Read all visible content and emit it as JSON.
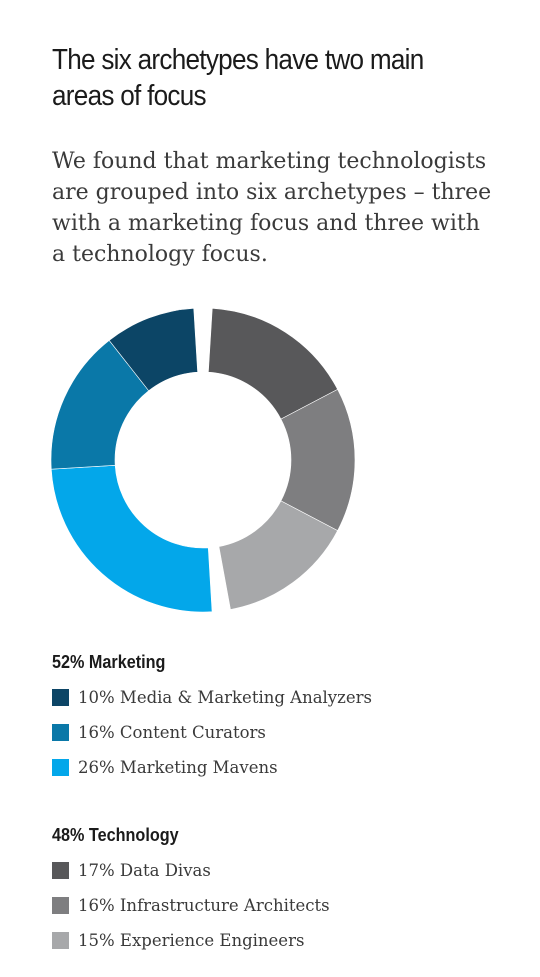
{
  "header": {
    "title": "The six archetypes have two main areas of focus",
    "subtitle": "We found that marketing technologists are grouped into six archetypes – three with a marketing focus and three with a technology focus."
  },
  "chart_data": {
    "type": "donut",
    "groups": [
      {
        "heading": "52% Marketing",
        "items": [
          {
            "label": "10% Media & Marketing Analyzers",
            "name": "Media & Marketing Analyzers",
            "value": 10,
            "color": "#0c4566"
          },
          {
            "label": "16% Content Curators",
            "name": "Content Curators",
            "value": 16,
            "color": "#0a78a8"
          },
          {
            "label": "26% Marketing Mavens",
            "name": "Marketing Mavens",
            "value": 26,
            "color": "#03a7ea"
          }
        ]
      },
      {
        "heading": "48% Technology",
        "items": [
          {
            "label": "17% Data Divas",
            "name": "Data Divas",
            "value": 17,
            "color": "#58585a"
          },
          {
            "label": "16% Infrastructure Architects",
            "name": "Infrastructure Architects",
            "value": 16,
            "color": "#7e7e80"
          },
          {
            "label": "15% Experience Engineers",
            "name": "Experience Engineers",
            "value": 15,
            "color": "#a7a8aa"
          }
        ]
      }
    ]
  }
}
